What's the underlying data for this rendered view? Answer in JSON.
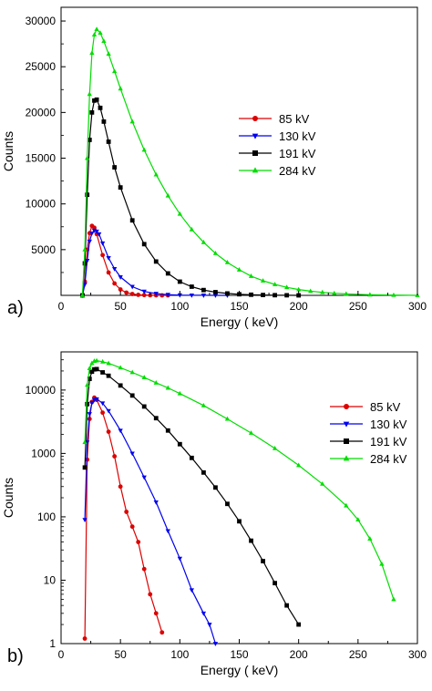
{
  "chart_data": [
    {
      "type": "line",
      "panel_label": "a)",
      "xlabel": "Energy    ( keV)",
      "ylabel": "Counts",
      "xlim": [
        0,
        300
      ],
      "ylim": [
        0,
        31500
      ],
      "yscale": "linear",
      "grid": false,
      "legend_position": "right",
      "x_ticks": [
        "0",
        "50",
        "100",
        "150",
        "200",
        "250",
        "300"
      ],
      "y_ticks": [
        "5000",
        "10000",
        "15000",
        "20000",
        "25000",
        "30000"
      ],
      "series": [
        {
          "name": "85 kV",
          "color": "#dd0000",
          "marker": "circle",
          "x": [
            18,
            20,
            22,
            24,
            26,
            28,
            30,
            35,
            40,
            45,
            50,
            55,
            60,
            65,
            70,
            75,
            80,
            85,
            90
          ],
          "y": [
            0,
            1500,
            5000,
            6800,
            7600,
            7400,
            6700,
            4400,
            2500,
            1300,
            650,
            300,
            150,
            60,
            30,
            10,
            5,
            0,
            0
          ]
        },
        {
          "name": "130 kV",
          "color": "#0000ee",
          "marker": "triangle-down",
          "x": [
            18,
            20,
            22,
            24,
            26,
            28,
            30,
            32,
            35,
            40,
            45,
            50,
            60,
            70,
            80,
            90,
            100,
            110,
            120,
            130,
            140
          ],
          "y": [
            0,
            1200,
            3800,
            5900,
            6800,
            7100,
            7000,
            6700,
            5700,
            4100,
            2900,
            2000,
            950,
            430,
            190,
            80,
            30,
            12,
            5,
            2,
            0
          ]
        },
        {
          "name": "191 kV",
          "color": "#000000",
          "marker": "square",
          "x": [
            18,
            20,
            22,
            24,
            26,
            28,
            30,
            33,
            36,
            40,
            45,
            50,
            60,
            70,
            80,
            90,
            100,
            110,
            120,
            130,
            140,
            150,
            160,
            170,
            180,
            190,
            200
          ],
          "y": [
            0,
            3500,
            11000,
            17000,
            20000,
            21300,
            21400,
            20500,
            19000,
            16800,
            14000,
            11800,
            8200,
            5600,
            3700,
            2400,
            1500,
            950,
            580,
            350,
            210,
            120,
            70,
            40,
            20,
            10,
            0
          ]
        },
        {
          "name": "284 kV",
          "color": "#00dd00",
          "marker": "triangle-up",
          "x": [
            18,
            20,
            22,
            24,
            26,
            28,
            30,
            33,
            36,
            40,
            45,
            50,
            60,
            70,
            80,
            90,
            100,
            110,
            120,
            130,
            140,
            150,
            160,
            170,
            180,
            190,
            200,
            210,
            220,
            230,
            240,
            260,
            280,
            300
          ],
          "y": [
            0,
            5000,
            15000,
            22000,
            26500,
            28500,
            29100,
            28700,
            27800,
            26400,
            24500,
            22600,
            19000,
            15900,
            13200,
            10900,
            8900,
            7200,
            5800,
            4600,
            3600,
            2800,
            2100,
            1600,
            1200,
            880,
            640,
            460,
            330,
            230,
            160,
            70,
            25,
            0
          ]
        }
      ]
    },
    {
      "type": "line",
      "panel_label": "b)",
      "xlabel": "Energy    ( keV)",
      "ylabel": "Counts",
      "xlim": [
        0,
        300
      ],
      "ylim": [
        1,
        40000
      ],
      "yscale": "log",
      "grid": false,
      "legend_position": "right",
      "x_ticks": [
        "0",
        "50",
        "100",
        "150",
        "200",
        "250",
        "300"
      ],
      "y_ticks": [
        "1",
        "10",
        "100",
        "1000",
        "10000"
      ],
      "series": [
        {
          "name": "85 kV",
          "color": "#dd0000",
          "marker": "circle",
          "x": [
            20,
            22,
            24,
            26,
            28,
            30,
            35,
            40,
            45,
            50,
            55,
            60,
            65,
            70,
            75,
            80,
            85
          ],
          "y": [
            1.2,
            800,
            3500,
            6500,
            7600,
            7000,
            4400,
            2200,
            900,
            300,
            120,
            70,
            40,
            15,
            6,
            3,
            1.5
          ]
        },
        {
          "name": "130 kV",
          "color": "#0000ee",
          "marker": "triangle-down",
          "x": [
            20,
            22,
            24,
            26,
            28,
            30,
            35,
            40,
            50,
            60,
            70,
            80,
            90,
            100,
            110,
            120,
            125,
            130
          ],
          "y": [
            90,
            1500,
            4200,
            6300,
            7000,
            7200,
            6200,
            4700,
            2300,
            1000,
            420,
            170,
            60,
            22,
            7,
            3,
            2,
            1
          ]
        },
        {
          "name": "191 kV",
          "color": "#000000",
          "marker": "square",
          "x": [
            20,
            22,
            24,
            26,
            28,
            30,
            35,
            40,
            50,
            60,
            70,
            80,
            90,
            100,
            110,
            120,
            130,
            140,
            150,
            160,
            170,
            180,
            190,
            200
          ],
          "y": [
            600,
            6000,
            15000,
            19500,
            21200,
            21400,
            19000,
            16800,
            11800,
            8200,
            5500,
            3600,
            2300,
            1400,
            850,
            500,
            290,
            160,
            85,
            42,
            20,
            9,
            4,
            2
          ]
        },
        {
          "name": "284 kV",
          "color": "#00dd00",
          "marker": "triangle-up",
          "x": [
            20,
            22,
            24,
            26,
            28,
            30,
            35,
            40,
            50,
            60,
            70,
            80,
            90,
            100,
            120,
            140,
            160,
            180,
            200,
            220,
            240,
            250,
            260,
            270,
            280
          ],
          "y": [
            1500,
            12000,
            22000,
            26500,
            28700,
            29100,
            28000,
            26400,
            22500,
            19000,
            15800,
            13000,
            10800,
            8800,
            5700,
            3500,
            2100,
            1200,
            650,
            330,
            150,
            90,
            45,
            18,
            5
          ]
        }
      ]
    }
  ]
}
